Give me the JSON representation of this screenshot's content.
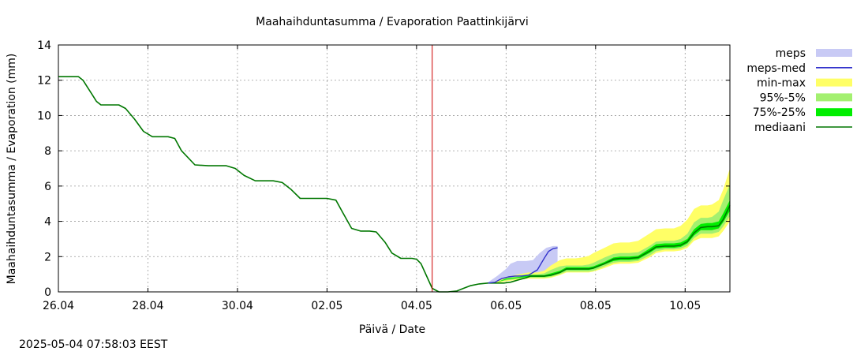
{
  "chart_data": {
    "type": "area",
    "title": "Maahaihduntasumma / Evaporation   Paattinkijärvi",
    "xlabel": "Päivä / Date",
    "ylabel": "Maahaihduntasumma / Evaporation (mm)",
    "xlim": [
      26.0,
      11.0
    ],
    "x_range_days": [
      0,
      15
    ],
    "ylim": [
      0,
      14
    ],
    "yticks": [
      0,
      2,
      4,
      6,
      8,
      10,
      12,
      14
    ],
    "xtick_labels": [
      "26.04",
      "28.04",
      "30.04",
      "02.05",
      "04.05",
      "06.05",
      "08.05",
      "10.05"
    ],
    "xtick_days": [
      0,
      2,
      4,
      6,
      8,
      10,
      12,
      14
    ],
    "grid": true,
    "forecast_start_day": 8.35,
    "forecast_marker_color": "#cc0000",
    "legend_position": "right",
    "legend": [
      {
        "key": "meps",
        "label": "meps",
        "color": "#c8caf5",
        "style": "band"
      },
      {
        "key": "meps_med",
        "label": "meps-med",
        "color": "#3333cc",
        "style": "line"
      },
      {
        "key": "minmax",
        "label": "min-max",
        "color": "#ffff66",
        "style": "band"
      },
      {
        "key": "p95_5",
        "label": "95%-5%",
        "color": "#a3f070",
        "style": "band"
      },
      {
        "key": "p75_25",
        "label": "75%-25%",
        "color": "#00ee00",
        "style": "band"
      },
      {
        "key": "median",
        "label": "mediaani",
        "color": "#007700",
        "style": "line"
      }
    ],
    "series": [
      {
        "name": "mediaani",
        "x_days": [
          0,
          0.15,
          0.3,
          0.45,
          0.55,
          0.65,
          0.75,
          0.85,
          0.95,
          1.05,
          1.15,
          1.25,
          1.35,
          1.5,
          1.7,
          1.9,
          2.1,
          2.2,
          2.3,
          2.45,
          2.6,
          2.75,
          3.05,
          3.35,
          3.45,
          3.6,
          3.75,
          3.95,
          4.15,
          4.4,
          4.6,
          4.8,
          5.0,
          5.2,
          5.4,
          5.6,
          5.8,
          6.0,
          6.2,
          6.35,
          6.55,
          6.75,
          6.95,
          7.1,
          7.3,
          7.45,
          7.65,
          7.8,
          7.9,
          8.0,
          8.1,
          8.35,
          8.5,
          8.7,
          8.9,
          9.05,
          9.2,
          9.4,
          9.6,
          9.8,
          9.95,
          10.1,
          10.3,
          10.45,
          10.55,
          10.7,
          10.85,
          11.0,
          11.2,
          11.35,
          11.55,
          11.7,
          11.85,
          11.95,
          12.2,
          12.4,
          12.55,
          12.75,
          12.95,
          13.2,
          13.35,
          13.55,
          13.75,
          13.9,
          14.05,
          14.2,
          14.35,
          14.5,
          14.6,
          14.75,
          14.85,
          15.0
        ],
        "values": [
          12.2,
          12.2,
          12.2,
          12.2,
          12.0,
          11.6,
          11.2,
          10.8,
          10.6,
          10.6,
          10.6,
          10.6,
          10.6,
          10.4,
          9.8,
          9.1,
          8.8,
          8.8,
          8.8,
          8.8,
          8.7,
          8.0,
          7.2,
          7.15,
          7.15,
          7.15,
          7.15,
          7.0,
          6.6,
          6.3,
          6.3,
          6.3,
          6.2,
          5.8,
          5.3,
          5.3,
          5.3,
          5.3,
          5.2,
          4.5,
          3.6,
          3.45,
          3.45,
          3.4,
          2.8,
          2.2,
          1.9,
          1.9,
          1.9,
          1.85,
          1.6,
          0.2,
          0.0,
          0.0,
          0.05,
          0.2,
          0.35,
          0.45,
          0.5,
          0.5,
          0.5,
          0.55,
          0.7,
          0.8,
          0.9,
          0.9,
          0.9,
          0.95,
          1.1,
          1.3,
          1.3,
          1.3,
          1.3,
          1.35,
          1.6,
          1.85,
          1.9,
          1.9,
          1.95,
          2.3,
          2.55,
          2.6,
          2.6,
          2.65,
          2.85,
          3.35,
          3.65,
          3.7,
          3.7,
          3.75,
          4.1,
          4.9
        ]
      },
      {
        "name": "meps-med",
        "x_days": [
          9.6,
          9.75,
          9.9,
          10.05,
          10.2,
          10.35,
          10.5,
          10.7,
          10.85,
          10.95,
          11.05,
          11.15
        ],
        "values": [
          0.5,
          0.55,
          0.75,
          0.85,
          0.9,
          0.9,
          0.95,
          1.25,
          1.9,
          2.3,
          2.45,
          2.5
        ]
      }
    ],
    "bands": [
      {
        "name": "meps",
        "x_days": [
          9.6,
          9.8,
          10.0,
          10.1,
          10.25,
          10.45,
          10.6,
          10.75,
          10.9,
          11.05,
          11.15
        ],
        "lower": [
          0.5,
          0.65,
          0.8,
          0.85,
          0.9,
          0.9,
          0.95,
          1.0,
          1.2,
          1.3,
          1.3
        ],
        "upper": [
          0.55,
          0.9,
          1.3,
          1.6,
          1.75,
          1.75,
          1.8,
          2.2,
          2.5,
          2.6,
          2.6
        ]
      },
      {
        "name": "min-max",
        "x_days": [
          9.6,
          9.8,
          10.0,
          10.3,
          10.5,
          10.7,
          10.85,
          11.0,
          11.2,
          11.35,
          11.55,
          11.7,
          11.85,
          11.95,
          12.2,
          12.4,
          12.55,
          12.75,
          12.95,
          13.2,
          13.35,
          13.55,
          13.75,
          13.9,
          14.05,
          14.2,
          14.35,
          14.5,
          14.6,
          14.75,
          14.85,
          15.0
        ],
        "lower": [
          0.5,
          0.5,
          0.6,
          0.7,
          0.75,
          0.75,
          0.75,
          0.8,
          0.95,
          1.1,
          1.1,
          1.1,
          1.1,
          1.15,
          1.35,
          1.55,
          1.6,
          1.6,
          1.65,
          1.95,
          2.2,
          2.3,
          2.3,
          2.35,
          2.5,
          2.9,
          3.05,
          3.05,
          3.05,
          3.15,
          3.45,
          4.0
        ],
        "upper": [
          0.5,
          0.6,
          0.85,
          1.0,
          1.1,
          1.1,
          1.2,
          1.5,
          1.8,
          1.9,
          1.9,
          1.95,
          2.05,
          2.2,
          2.5,
          2.75,
          2.8,
          2.8,
          2.9,
          3.3,
          3.55,
          3.6,
          3.6,
          3.75,
          4.1,
          4.7,
          4.9,
          4.9,
          4.95,
          5.2,
          5.8,
          7.0
        ]
      },
      {
        "name": "95%-5%",
        "x_days": [
          9.6,
          9.8,
          10.0,
          10.3,
          10.5,
          10.7,
          10.85,
          11.0,
          11.2,
          11.35,
          11.55,
          11.7,
          11.85,
          11.95,
          12.2,
          12.4,
          12.55,
          12.75,
          12.95,
          13.2,
          13.35,
          13.55,
          13.75,
          13.9,
          14.05,
          14.2,
          14.35,
          14.5,
          14.6,
          14.75,
          14.85,
          15.0
        ],
        "lower": [
          0.5,
          0.55,
          0.65,
          0.75,
          0.8,
          0.8,
          0.8,
          0.85,
          1.0,
          1.15,
          1.15,
          1.15,
          1.15,
          1.2,
          1.45,
          1.65,
          1.7,
          1.7,
          1.75,
          2.05,
          2.3,
          2.4,
          2.4,
          2.45,
          2.6,
          3.05,
          3.3,
          3.3,
          3.3,
          3.4,
          3.7,
          4.3
        ],
        "upper": [
          0.5,
          0.55,
          0.8,
          0.95,
          1.0,
          1.0,
          1.05,
          1.25,
          1.45,
          1.5,
          1.5,
          1.5,
          1.55,
          1.65,
          1.95,
          2.15,
          2.2,
          2.2,
          2.25,
          2.6,
          2.85,
          2.9,
          2.9,
          3.0,
          3.3,
          3.95,
          4.2,
          4.2,
          4.25,
          4.55,
          5.2,
          6.1
        ]
      },
      {
        "name": "75%-25%",
        "x_days": [
          9.6,
          9.8,
          10.0,
          10.3,
          10.5,
          10.7,
          10.85,
          11.0,
          11.2,
          11.35,
          11.55,
          11.7,
          11.85,
          11.95,
          12.2,
          12.4,
          12.55,
          12.75,
          12.95,
          13.2,
          13.35,
          13.55,
          13.75,
          13.9,
          14.05,
          14.2,
          14.35,
          14.5,
          14.6,
          14.75,
          14.85,
          15.0
        ],
        "lower": [
          0.5,
          0.55,
          0.7,
          0.8,
          0.85,
          0.85,
          0.85,
          0.9,
          1.05,
          1.25,
          1.25,
          1.25,
          1.25,
          1.3,
          1.55,
          1.75,
          1.8,
          1.8,
          1.85,
          2.2,
          2.45,
          2.5,
          2.5,
          2.55,
          2.75,
          3.2,
          3.5,
          3.5,
          3.5,
          3.6,
          3.95,
          4.6
        ],
        "upper": [
          0.5,
          0.55,
          0.75,
          0.85,
          0.95,
          0.95,
          0.95,
          1.05,
          1.2,
          1.4,
          1.4,
          1.4,
          1.4,
          1.45,
          1.7,
          1.95,
          2.0,
          2.0,
          2.05,
          2.45,
          2.7,
          2.75,
          2.75,
          2.8,
          3.0,
          3.55,
          3.85,
          3.9,
          3.9,
          4.0,
          4.45,
          5.2
        ]
      }
    ]
  },
  "footer": {
    "timestamp": "2025-05-04  07:58:03 EEST"
  }
}
